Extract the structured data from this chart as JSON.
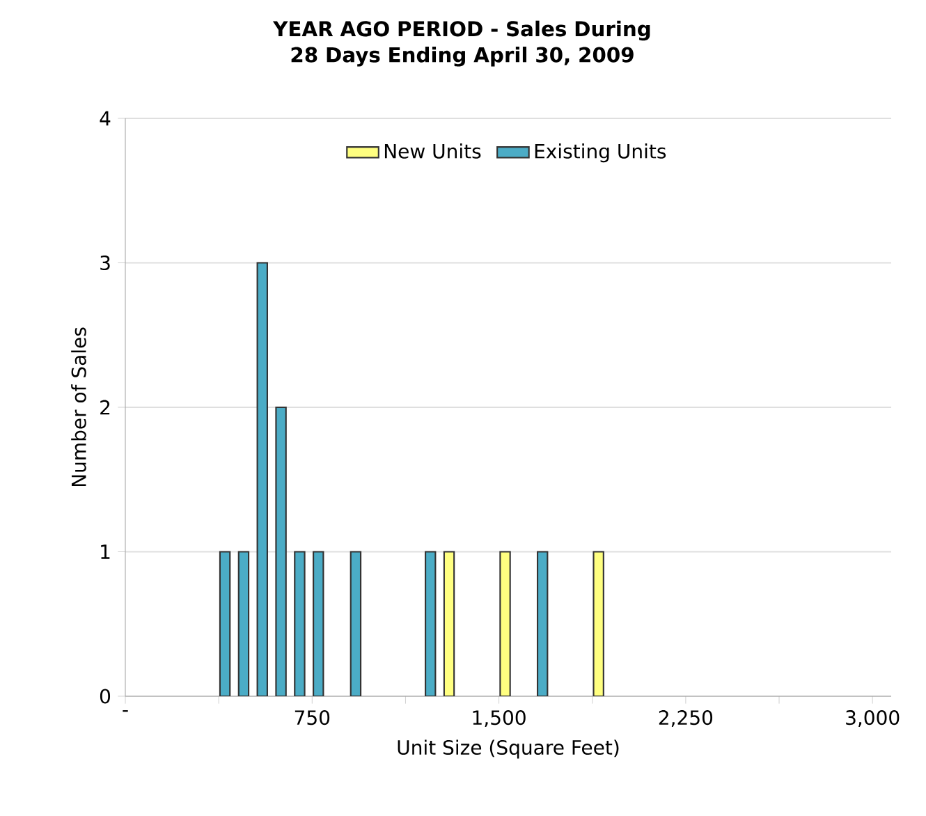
{
  "chart_data": {
    "type": "bar",
    "title": "YEAR AGO PERIOD - Sales During 28 Days Ending April 30, 2009",
    "xlabel": "Unit Size (Square Feet)",
    "ylabel": "Number of Sales",
    "series": [
      {
        "name": "New Units",
        "color": "#ffff80",
        "x": [
          1300,
          1525,
          1900
        ],
        "values": [
          1,
          1,
          1
        ]
      },
      {
        "name": "Existing Units",
        "color": "#4bacc6",
        "x": [
          400,
          475,
          550,
          625,
          700,
          775,
          925,
          1225,
          1675
        ],
        "values": [
          1,
          1,
          3,
          2,
          1,
          1,
          1,
          1,
          1
        ]
      }
    ],
    "xlim": [
      0,
      3075
    ],
    "ylim": [
      0,
      4
    ],
    "xticks": [
      {
        "value": 0,
        "label": "-"
      },
      {
        "value": 375,
        "label": null
      },
      750,
      {
        "value": 1125,
        "label": null
      },
      {
        "value": 1500,
        "label": "1,500"
      },
      {
        "value": 1875,
        "label": null
      },
      {
        "value": 2250,
        "label": "2,250"
      },
      {
        "value": 2625,
        "label": null
      },
      {
        "value": 3000,
        "label": "3,000"
      }
    ],
    "yticks": [
      0,
      1,
      2,
      3,
      4
    ],
    "grid": "y",
    "legend": "top"
  }
}
